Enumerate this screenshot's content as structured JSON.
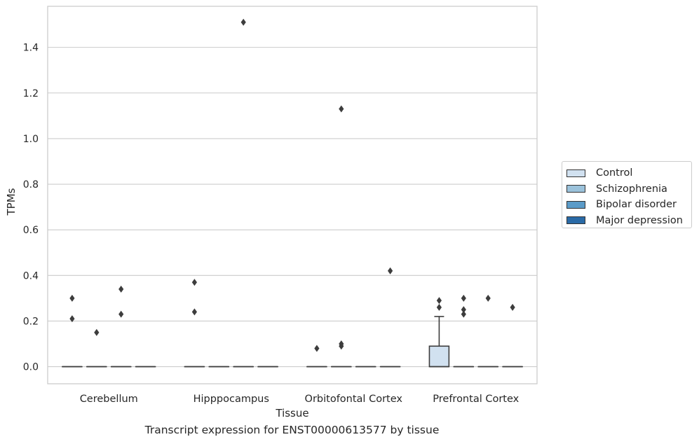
{
  "chart_data": {
    "type": "boxplot",
    "xlabel": "Tissue",
    "ylabel": "TPMs",
    "ylim": [
      -0.075,
      1.58
    ],
    "yticks": [
      0.0,
      0.2,
      0.4,
      0.6,
      0.8,
      1.0,
      1.2,
      1.4
    ],
    "ytick_labels": [
      "0.0",
      "0.2",
      "0.4",
      "0.6",
      "0.8",
      "1.0",
      "1.2",
      "1.4"
    ],
    "grid": "horizontal",
    "legend_position": "center-right-outside",
    "categories": [
      "Cerebellum",
      "Hipppocampus",
      "Orbitofontal Cortex",
      "Prefrontal Cortex"
    ],
    "series": [
      {
        "name": "Control",
        "color": "#d1e1f0",
        "boxes": [
          {
            "q1": 0.0,
            "median": 0.0,
            "q3": 0.0,
            "whisker_low": 0.0,
            "whisker_high": 0.0,
            "outliers": [
              0.3,
              0.21
            ]
          },
          {
            "q1": 0.0,
            "median": 0.0,
            "q3": 0.0,
            "whisker_low": 0.0,
            "whisker_high": 0.0,
            "outliers": [
              0.37,
              0.24
            ]
          },
          {
            "q1": 0.0,
            "median": 0.0,
            "q3": 0.0,
            "whisker_low": 0.0,
            "whisker_high": 0.0,
            "outliers": [
              0.08
            ]
          },
          {
            "q1": 0.0,
            "median": 0.0,
            "q3": 0.09,
            "whisker_low": 0.0,
            "whisker_high": 0.22,
            "outliers": [
              0.29,
              0.26
            ]
          }
        ]
      },
      {
        "name": "Schizophrenia",
        "color": "#9bc2db",
        "boxes": [
          {
            "q1": 0.0,
            "median": 0.0,
            "q3": 0.0,
            "whisker_low": 0.0,
            "whisker_high": 0.0,
            "outliers": [
              0.15
            ]
          },
          {
            "q1": 0.0,
            "median": 0.0,
            "q3": 0.0,
            "whisker_low": 0.0,
            "whisker_high": 0.0,
            "outliers": []
          },
          {
            "q1": 0.0,
            "median": 0.0,
            "q3": 0.0,
            "whisker_low": 0.0,
            "whisker_high": 0.0,
            "outliers": [
              1.13,
              0.1,
              0.09
            ]
          },
          {
            "q1": 0.0,
            "median": 0.0,
            "q3": 0.0,
            "whisker_low": 0.0,
            "whisker_high": 0.0,
            "outliers": [
              0.3,
              0.25,
              0.23
            ]
          }
        ]
      },
      {
        "name": "Bipolar disorder",
        "color": "#5b9bc8",
        "boxes": [
          {
            "q1": 0.0,
            "median": 0.0,
            "q3": 0.0,
            "whisker_low": 0.0,
            "whisker_high": 0.0,
            "outliers": [
              0.34,
              0.23
            ]
          },
          {
            "q1": 0.0,
            "median": 0.0,
            "q3": 0.0,
            "whisker_low": 0.0,
            "whisker_high": 0.0,
            "outliers": [
              1.51
            ]
          },
          {
            "q1": 0.0,
            "median": 0.0,
            "q3": 0.0,
            "whisker_low": 0.0,
            "whisker_high": 0.0,
            "outliers": []
          },
          {
            "q1": 0.0,
            "median": 0.0,
            "q3": 0.0,
            "whisker_low": 0.0,
            "whisker_high": 0.0,
            "outliers": [
              0.3
            ]
          }
        ]
      },
      {
        "name": "Major depression",
        "color": "#2a6aa6",
        "boxes": [
          {
            "q1": 0.0,
            "median": 0.0,
            "q3": 0.0,
            "whisker_low": 0.0,
            "whisker_high": 0.0,
            "outliers": []
          },
          {
            "q1": 0.0,
            "median": 0.0,
            "q3": 0.0,
            "whisker_low": 0.0,
            "whisker_high": 0.0,
            "outliers": []
          },
          {
            "q1": 0.0,
            "median": 0.0,
            "q3": 0.0,
            "whisker_low": 0.0,
            "whisker_high": 0.0,
            "outliers": [
              0.42
            ]
          },
          {
            "q1": 0.0,
            "median": 0.0,
            "q3": 0.0,
            "whisker_low": 0.0,
            "whisker_high": 0.0,
            "outliers": [
              0.26
            ]
          }
        ]
      }
    ]
  },
  "caption": "Transcript expression for ENST00000613577 by tissue"
}
